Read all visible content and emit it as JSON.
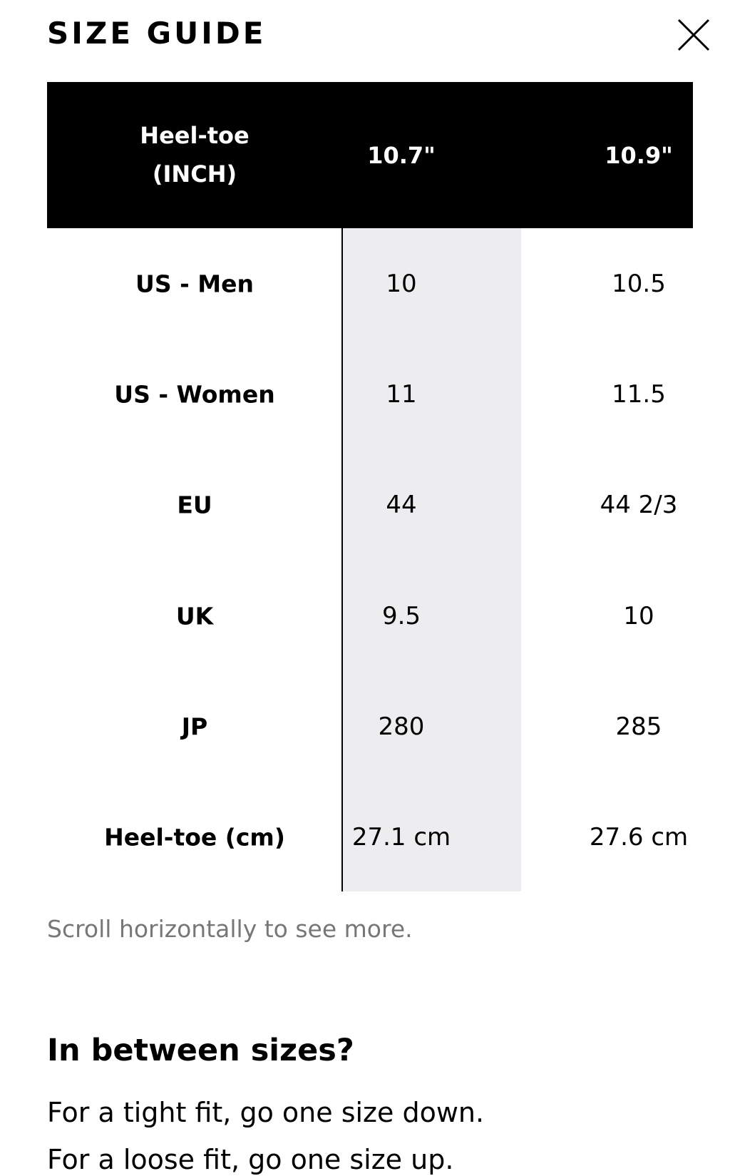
{
  "header": {
    "title": "SIZE GUIDE"
  },
  "table": {
    "header_label": [
      "Heel-toe",
      "(INCH)"
    ],
    "columns": [
      "10.7\"",
      "10.9\""
    ],
    "rows": [
      {
        "label": "US - Men",
        "values": [
          "10",
          "10.5"
        ]
      },
      {
        "label": "US - Women",
        "values": [
          "11",
          "11.5"
        ]
      },
      {
        "label": "EU",
        "values": [
          "44",
          "44 2/3"
        ]
      },
      {
        "label": "UK",
        "values": [
          "9.5",
          "10"
        ]
      },
      {
        "label": "JP",
        "values": [
          "280",
          "285"
        ]
      },
      {
        "label": "Heel-toe (cm)",
        "values": [
          "27.1 cm",
          "27.6 cm"
        ]
      }
    ]
  },
  "note": "Scroll horizontally to see more.",
  "tip": {
    "heading": "In between sizes?",
    "lines": [
      "For a tight fit, go one size down.",
      "For a loose fit, go one size up."
    ]
  }
}
